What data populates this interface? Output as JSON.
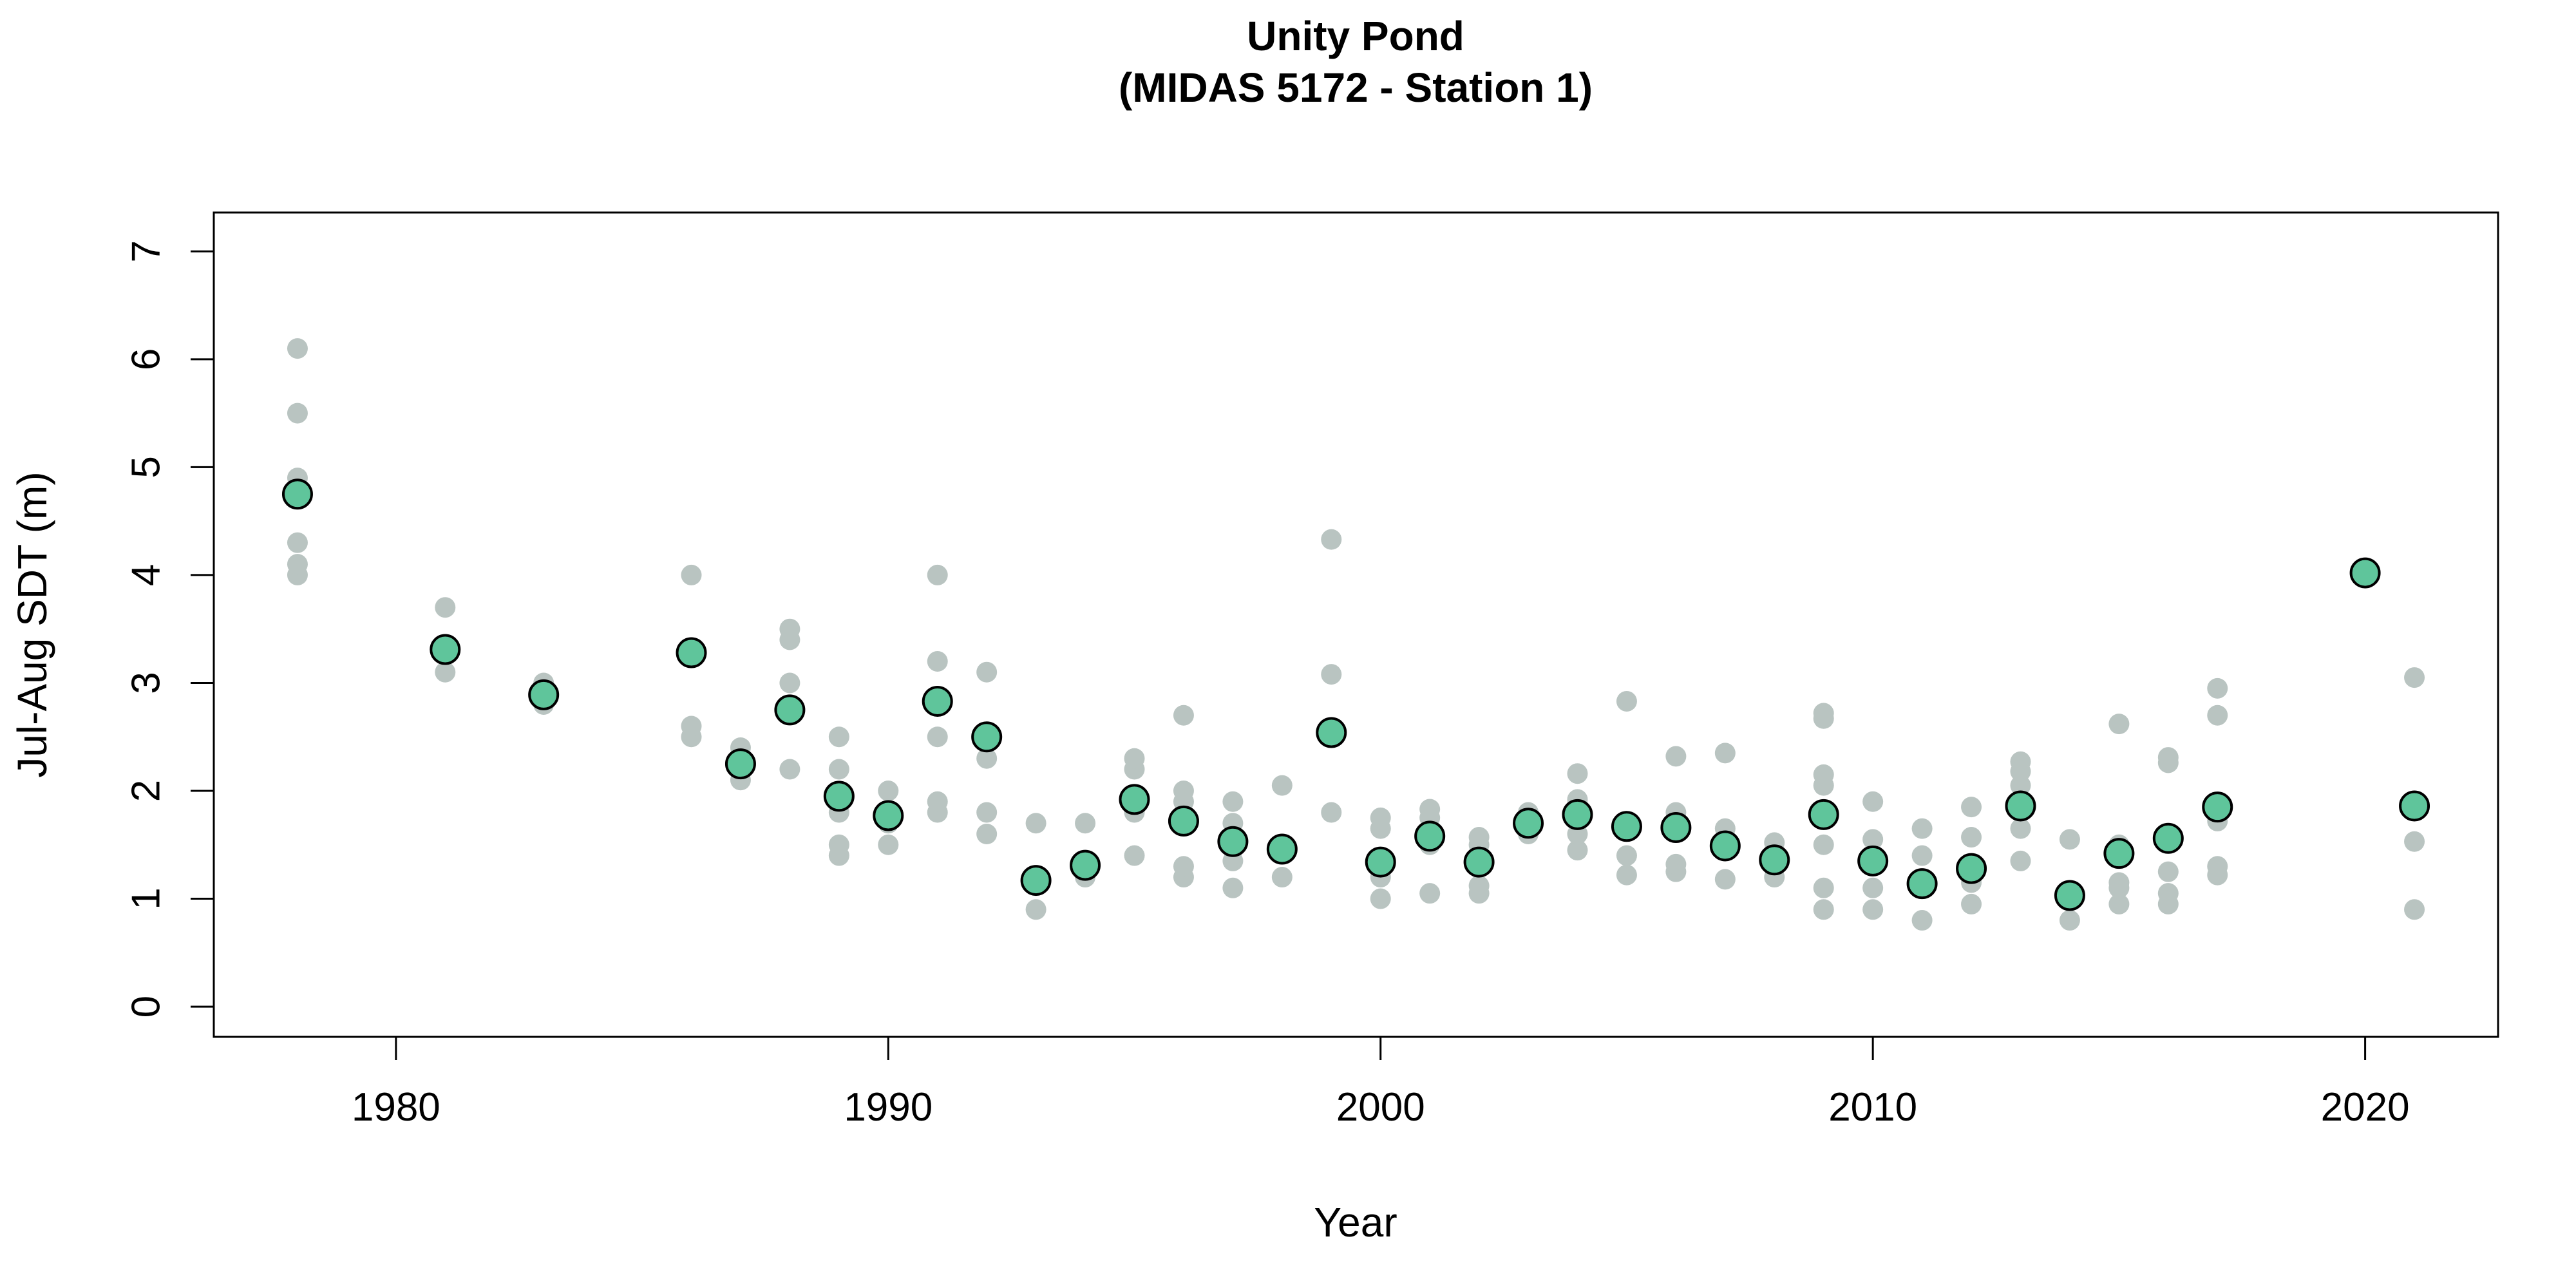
{
  "chart_data": {
    "type": "scatter",
    "title": "Unity Pond",
    "subtitle": "(MIDAS 5172 - Station 1)",
    "xlabel": "Year",
    "ylabel": "Jul-Aug SDT (m)",
    "xlim": [
      1976.3,
      2022.7
    ],
    "ylim": [
      7.36,
      -0.28
    ],
    "y_reversed": true,
    "x_ticks": [
      1980,
      1990,
      2000,
      2010,
      2020
    ],
    "y_ticks": [
      0,
      1,
      2,
      3,
      4,
      5,
      6,
      7
    ],
    "grid": false,
    "legend": "none",
    "colors": {
      "observations": "#b9c4c1",
      "annual_mean_fill": "#5fc59b",
      "annual_mean_edge": "#000000"
    },
    "series": [
      {
        "role": "observations",
        "points": [
          [
            1978,
            4.0
          ],
          [
            1978,
            4.1
          ],
          [
            1978,
            4.3
          ],
          [
            1978,
            4.9
          ],
          [
            1978,
            5.5
          ],
          [
            1978,
            6.1
          ],
          [
            1981,
            3.1
          ],
          [
            1981,
            3.7
          ],
          [
            1983,
            2.8
          ],
          [
            1983,
            3.0
          ],
          [
            1986,
            2.5
          ],
          [
            1986,
            2.6
          ],
          [
            1986,
            4.0
          ],
          [
            1987,
            2.1
          ],
          [
            1987,
            2.4
          ],
          [
            1988,
            2.2
          ],
          [
            1988,
            3.0
          ],
          [
            1988,
            3.4
          ],
          [
            1988,
            3.5
          ],
          [
            1989,
            1.4
          ],
          [
            1989,
            1.5
          ],
          [
            1989,
            1.8
          ],
          [
            1989,
            2.2
          ],
          [
            1989,
            2.5
          ],
          [
            1990,
            1.5
          ],
          [
            1990,
            1.7
          ],
          [
            1990,
            2.0
          ],
          [
            1991,
            1.8
          ],
          [
            1991,
            1.9
          ],
          [
            1991,
            2.5
          ],
          [
            1991,
            3.2
          ],
          [
            1991,
            4.0
          ],
          [
            1992,
            1.6
          ],
          [
            1992,
            1.8
          ],
          [
            1992,
            2.3
          ],
          [
            1992,
            3.1
          ],
          [
            1993,
            0.9
          ],
          [
            1993,
            1.7
          ],
          [
            1994,
            1.2
          ],
          [
            1994,
            1.7
          ],
          [
            1995,
            1.4
          ],
          [
            1995,
            1.8
          ],
          [
            1995,
            2.2
          ],
          [
            1995,
            2.3
          ],
          [
            1996,
            1.2
          ],
          [
            1996,
            1.3
          ],
          [
            1996,
            1.9
          ],
          [
            1996,
            2.0
          ],
          [
            1996,
            2.7
          ],
          [
            1997,
            1.1
          ],
          [
            1997,
            1.35
          ],
          [
            1997,
            1.7
          ],
          [
            1997,
            1.9
          ],
          [
            1998,
            1.2
          ],
          [
            1998,
            2.05
          ],
          [
            1999,
            1.8
          ],
          [
            1999,
            3.08
          ],
          [
            1999,
            4.33
          ],
          [
            2000,
            1.0
          ],
          [
            2000,
            1.2
          ],
          [
            2000,
            1.65
          ],
          [
            2000,
            1.75
          ],
          [
            2001,
            1.05
          ],
          [
            2001,
            1.5
          ],
          [
            2001,
            1.75
          ],
          [
            2001,
            1.83
          ],
          [
            2002,
            1.05
          ],
          [
            2002,
            1.12
          ],
          [
            2002,
            1.5
          ],
          [
            2002,
            1.57
          ],
          [
            2003,
            1.6
          ],
          [
            2003,
            1.8
          ],
          [
            2004,
            1.45
          ],
          [
            2004,
            1.6
          ],
          [
            2004,
            1.92
          ],
          [
            2004,
            2.16
          ],
          [
            2005,
            1.22
          ],
          [
            2005,
            1.4
          ],
          [
            2005,
            2.83
          ],
          [
            2006,
            1.25
          ],
          [
            2006,
            1.32
          ],
          [
            2006,
            1.8
          ],
          [
            2006,
            2.32
          ],
          [
            2007,
            1.18
          ],
          [
            2007,
            1.65
          ],
          [
            2007,
            2.35
          ],
          [
            2008,
            1.2
          ],
          [
            2008,
            1.52
          ],
          [
            2009,
            0.9
          ],
          [
            2009,
            1.1
          ],
          [
            2009,
            1.5
          ],
          [
            2009,
            2.05
          ],
          [
            2009,
            2.15
          ],
          [
            2009,
            2.67
          ],
          [
            2009,
            2.72
          ],
          [
            2010,
            0.9
          ],
          [
            2010,
            1.1
          ],
          [
            2010,
            1.55
          ],
          [
            2010,
            1.9
          ],
          [
            2011,
            0.8
          ],
          [
            2011,
            1.4
          ],
          [
            2011,
            1.65
          ],
          [
            2012,
            0.95
          ],
          [
            2012,
            1.15
          ],
          [
            2012,
            1.57
          ],
          [
            2012,
            1.85
          ],
          [
            2013,
            1.35
          ],
          [
            2013,
            1.65
          ],
          [
            2013,
            2.05
          ],
          [
            2013,
            2.18
          ],
          [
            2013,
            2.27
          ],
          [
            2014,
            0.8
          ],
          [
            2014,
            1.55
          ],
          [
            2015,
            0.95
          ],
          [
            2015,
            1.1
          ],
          [
            2015,
            1.15
          ],
          [
            2015,
            1.5
          ],
          [
            2015,
            2.62
          ],
          [
            2016,
            0.95
          ],
          [
            2016,
            1.05
          ],
          [
            2016,
            1.25
          ],
          [
            2016,
            2.26
          ],
          [
            2016,
            2.31
          ],
          [
            2017,
            1.22
          ],
          [
            2017,
            1.3
          ],
          [
            2017,
            1.72
          ],
          [
            2017,
            2.7
          ],
          [
            2017,
            2.95
          ],
          [
            2021,
            0.9
          ],
          [
            2021,
            1.53
          ],
          [
            2021,
            3.05
          ]
        ]
      },
      {
        "role": "annual_mean",
        "points": [
          [
            1978,
            4.75
          ],
          [
            1981,
            3.31
          ],
          [
            1983,
            2.89
          ],
          [
            1986,
            3.28
          ],
          [
            1987,
            2.25
          ],
          [
            1988,
            2.75
          ],
          [
            1989,
            1.95
          ],
          [
            1990,
            1.77
          ],
          [
            1991,
            2.83
          ],
          [
            1992,
            2.5
          ],
          [
            1993,
            1.17
          ],
          [
            1994,
            1.31
          ],
          [
            1995,
            1.92
          ],
          [
            1996,
            1.72
          ],
          [
            1997,
            1.53
          ],
          [
            1998,
            1.46
          ],
          [
            1999,
            2.54
          ],
          [
            2000,
            1.34
          ],
          [
            2001,
            1.58
          ],
          [
            2002,
            1.34
          ],
          [
            2003,
            1.7
          ],
          [
            2004,
            1.78
          ],
          [
            2005,
            1.67
          ],
          [
            2006,
            1.66
          ],
          [
            2007,
            1.49
          ],
          [
            2008,
            1.36
          ],
          [
            2009,
            1.78
          ],
          [
            2010,
            1.35
          ],
          [
            2011,
            1.14
          ],
          [
            2012,
            1.28
          ],
          [
            2013,
            1.86
          ],
          [
            2014,
            1.03
          ],
          [
            2015,
            1.42
          ],
          [
            2016,
            1.56
          ],
          [
            2017,
            1.85
          ],
          [
            2020,
            4.02
          ],
          [
            2021,
            1.86
          ]
        ]
      }
    ]
  }
}
